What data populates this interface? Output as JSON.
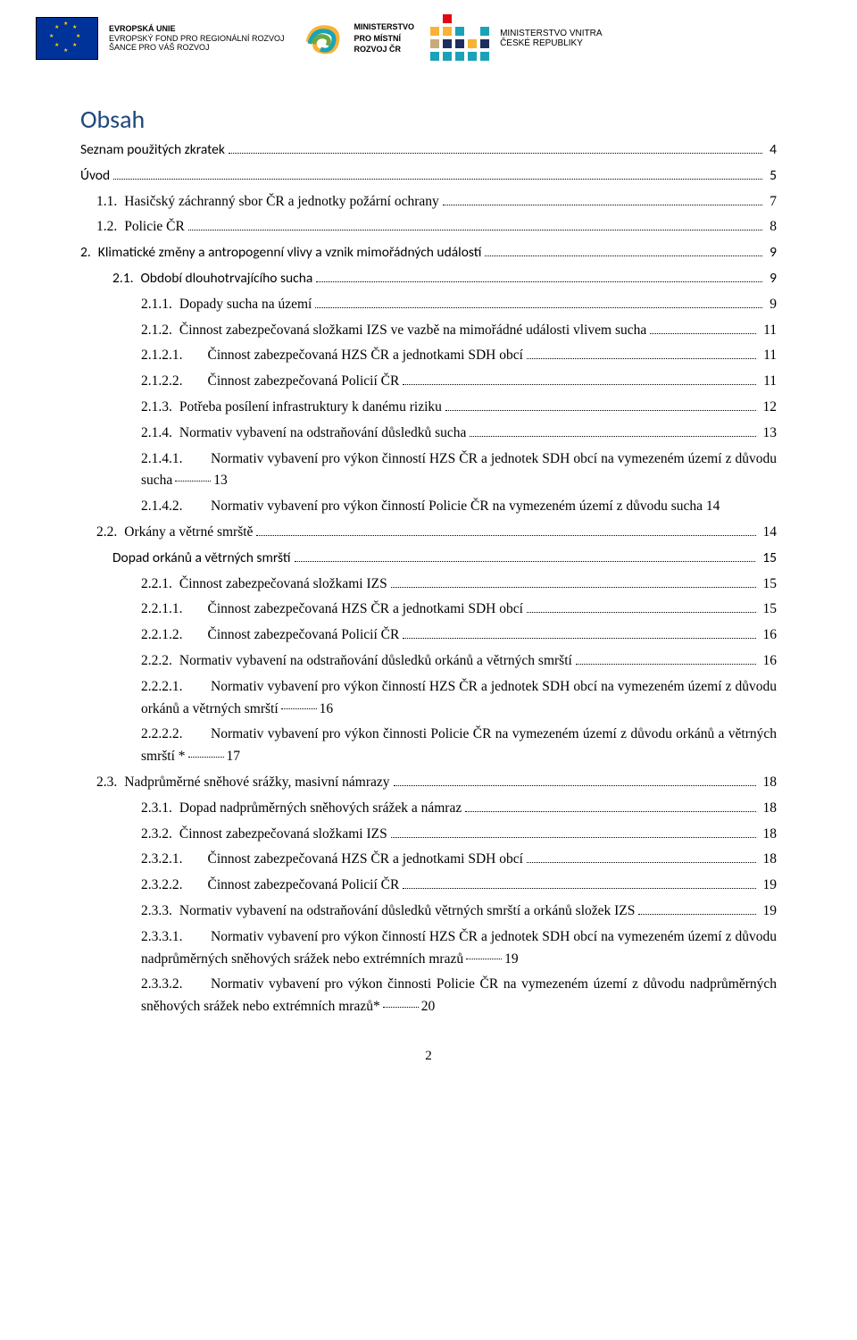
{
  "header": {
    "eu_l1": "EVROPSKÁ UNIE",
    "eu_l2": "EVROPSKÝ FOND PRO REGIONÁLNÍ ROZVOJ",
    "eu_l3": "ŠANCE PRO VÁŠ ROZVOJ",
    "mmr_l1": "MINISTERSTVO",
    "mmr_l2": "PRO MÍSTNÍ",
    "mmr_l3": "ROZVOJ ČR",
    "mv_l1": "MINISTERSTVO VNITRA",
    "mv_l2": "ČESKÉ REPUBLIKY"
  },
  "title": "Obsah",
  "toc": [
    {
      "lvl": 0,
      "num": "",
      "label": "Seznam použitých zkratek",
      "page": "4"
    },
    {
      "lvl": 0,
      "num": "",
      "label": "Úvod",
      "page": "5"
    },
    {
      "lvl": 1,
      "num": "1.1.",
      "label": "Hasičský záchranný sbor ČR a jednotky požární ochrany",
      "page": "7"
    },
    {
      "lvl": 1,
      "num": "1.2.",
      "label": "Policie ČR",
      "page": "8"
    },
    {
      "lvl": 0,
      "num": "2.",
      "label": "Klimatické změny a antropogenní vlivy a vznik mimořádných událostí",
      "page": "9"
    },
    {
      "lvl": 2,
      "num": "2.1.",
      "label": "Období dlouhotrvajícího sucha",
      "page": "9"
    },
    {
      "lvl": 3,
      "num": "2.1.1.",
      "label": "Dopady sucha na území",
      "page": "9"
    },
    {
      "lvl": 3,
      "num": "2.1.2.",
      "label": "Činnost zabezpečovaná složkami IZS ve vazbě na mimořádné události vlivem sucha",
      "page": "11"
    },
    {
      "lvl": 4,
      "num": "2.1.2.1.",
      "label": "Činnost zabezpečovaná HZS ČR a jednotkami SDH obcí",
      "page": "11"
    },
    {
      "lvl": 4,
      "num": "2.1.2.2.",
      "label": "Činnost zabezpečovaná Policií ČR",
      "page": "11"
    },
    {
      "lvl": 3,
      "num": "2.1.3.",
      "label": "Potřeba posílení infrastruktury k danému riziku",
      "page": "12"
    },
    {
      "lvl": 3,
      "num": "2.1.4.",
      "label": "Normativ vybavení na odstraňování důsledků sucha",
      "page": "13"
    },
    {
      "lvl": 4,
      "num": "2.1.4.1.",
      "label": "Normativ vybavení pro výkon činností HZS ČR a jednotek SDH obcí na vymezeném území z důvodu sucha",
      "page": "13",
      "just": true
    },
    {
      "lvl": 4,
      "num": "2.1.4.2.",
      "label": "Normativ vybavení pro výkon činností Policie ČR na vymezeném území z důvodu sucha 14",
      "page": "",
      "nodots": true,
      "just": true
    },
    {
      "lvl": 1,
      "num": "2.2.",
      "label": "Orkány a větrné smrště",
      "page": "14"
    },
    {
      "lvl": 2,
      "num": "",
      "label": "Dopad orkánů a větrných smrští",
      "page": "15"
    },
    {
      "lvl": 3,
      "num": "2.2.1.",
      "label": "Činnost zabezpečovaná složkami IZS",
      "page": "15"
    },
    {
      "lvl": 4,
      "num": "2.2.1.1.",
      "label": "Činnost zabezpečovaná HZS ČR a jednotkami SDH obcí",
      "page": "15"
    },
    {
      "lvl": 4,
      "num": "2.2.1.2.",
      "label": "Činnost zabezpečovaná Policií ČR",
      "page": "16"
    },
    {
      "lvl": 3,
      "num": "2.2.2.",
      "label": "Normativ vybavení na odstraňování důsledků orkánů a větrných smrští",
      "page": "16"
    },
    {
      "lvl": 4,
      "num": "2.2.2.1.",
      "label": "Normativ vybavení pro výkon činností HZS ČR a jednotek SDH obcí na vymezeném území z důvodu orkánů a větrných smrští",
      "page": "16",
      "just": true
    },
    {
      "lvl": 4,
      "num": "2.2.2.2.",
      "label": "Normativ vybavení pro výkon činnosti Policie ČR na vymezeném území z důvodu orkánů a větrných smrští *",
      "page": "17",
      "just": true
    },
    {
      "lvl": 1,
      "num": "2.3.",
      "label": "Nadprůměrné sněhové srážky, masivní námrazy",
      "page": "18"
    },
    {
      "lvl": 3,
      "num": "2.3.1.",
      "label": "Dopad nadprůměrných sněhových srážek a námraz",
      "page": "18"
    },
    {
      "lvl": 3,
      "num": "2.3.2.",
      "label": "Činnost zabezpečovaná složkami IZS",
      "page": "18"
    },
    {
      "lvl": 4,
      "num": "2.3.2.1.",
      "label": "Činnost zabezpečovaná HZS ČR a jednotkami SDH obcí",
      "page": "18"
    },
    {
      "lvl": 4,
      "num": "2.3.2.2.",
      "label": "Činnost zabezpečovaná Policií ČR",
      "page": "19"
    },
    {
      "lvl": 3,
      "num": "2.3.3.",
      "label": "Normativ vybavení na odstraňování důsledků větrných smrští a orkánů složek IZS",
      "page": "19"
    },
    {
      "lvl": 4,
      "num": "2.3.3.1.",
      "label": "Normativ vybavení pro výkon činností HZS ČR a jednotek SDH obcí na vymezeném území z důvodu nadprůměrných sněhových srážek nebo extrémních mrazů",
      "page": "19",
      "just": true
    },
    {
      "lvl": 4,
      "num": "2.3.3.2.",
      "label": "Normativ vybavení pro výkon činnosti Policie ČR na vymezeném území z důvodu nadprůměrných sněhových srážek nebo extrémních mrazů*",
      "page": "20",
      "just": true
    }
  ],
  "page_number": "2",
  "colors": {
    "heading": "#1f497d"
  }
}
